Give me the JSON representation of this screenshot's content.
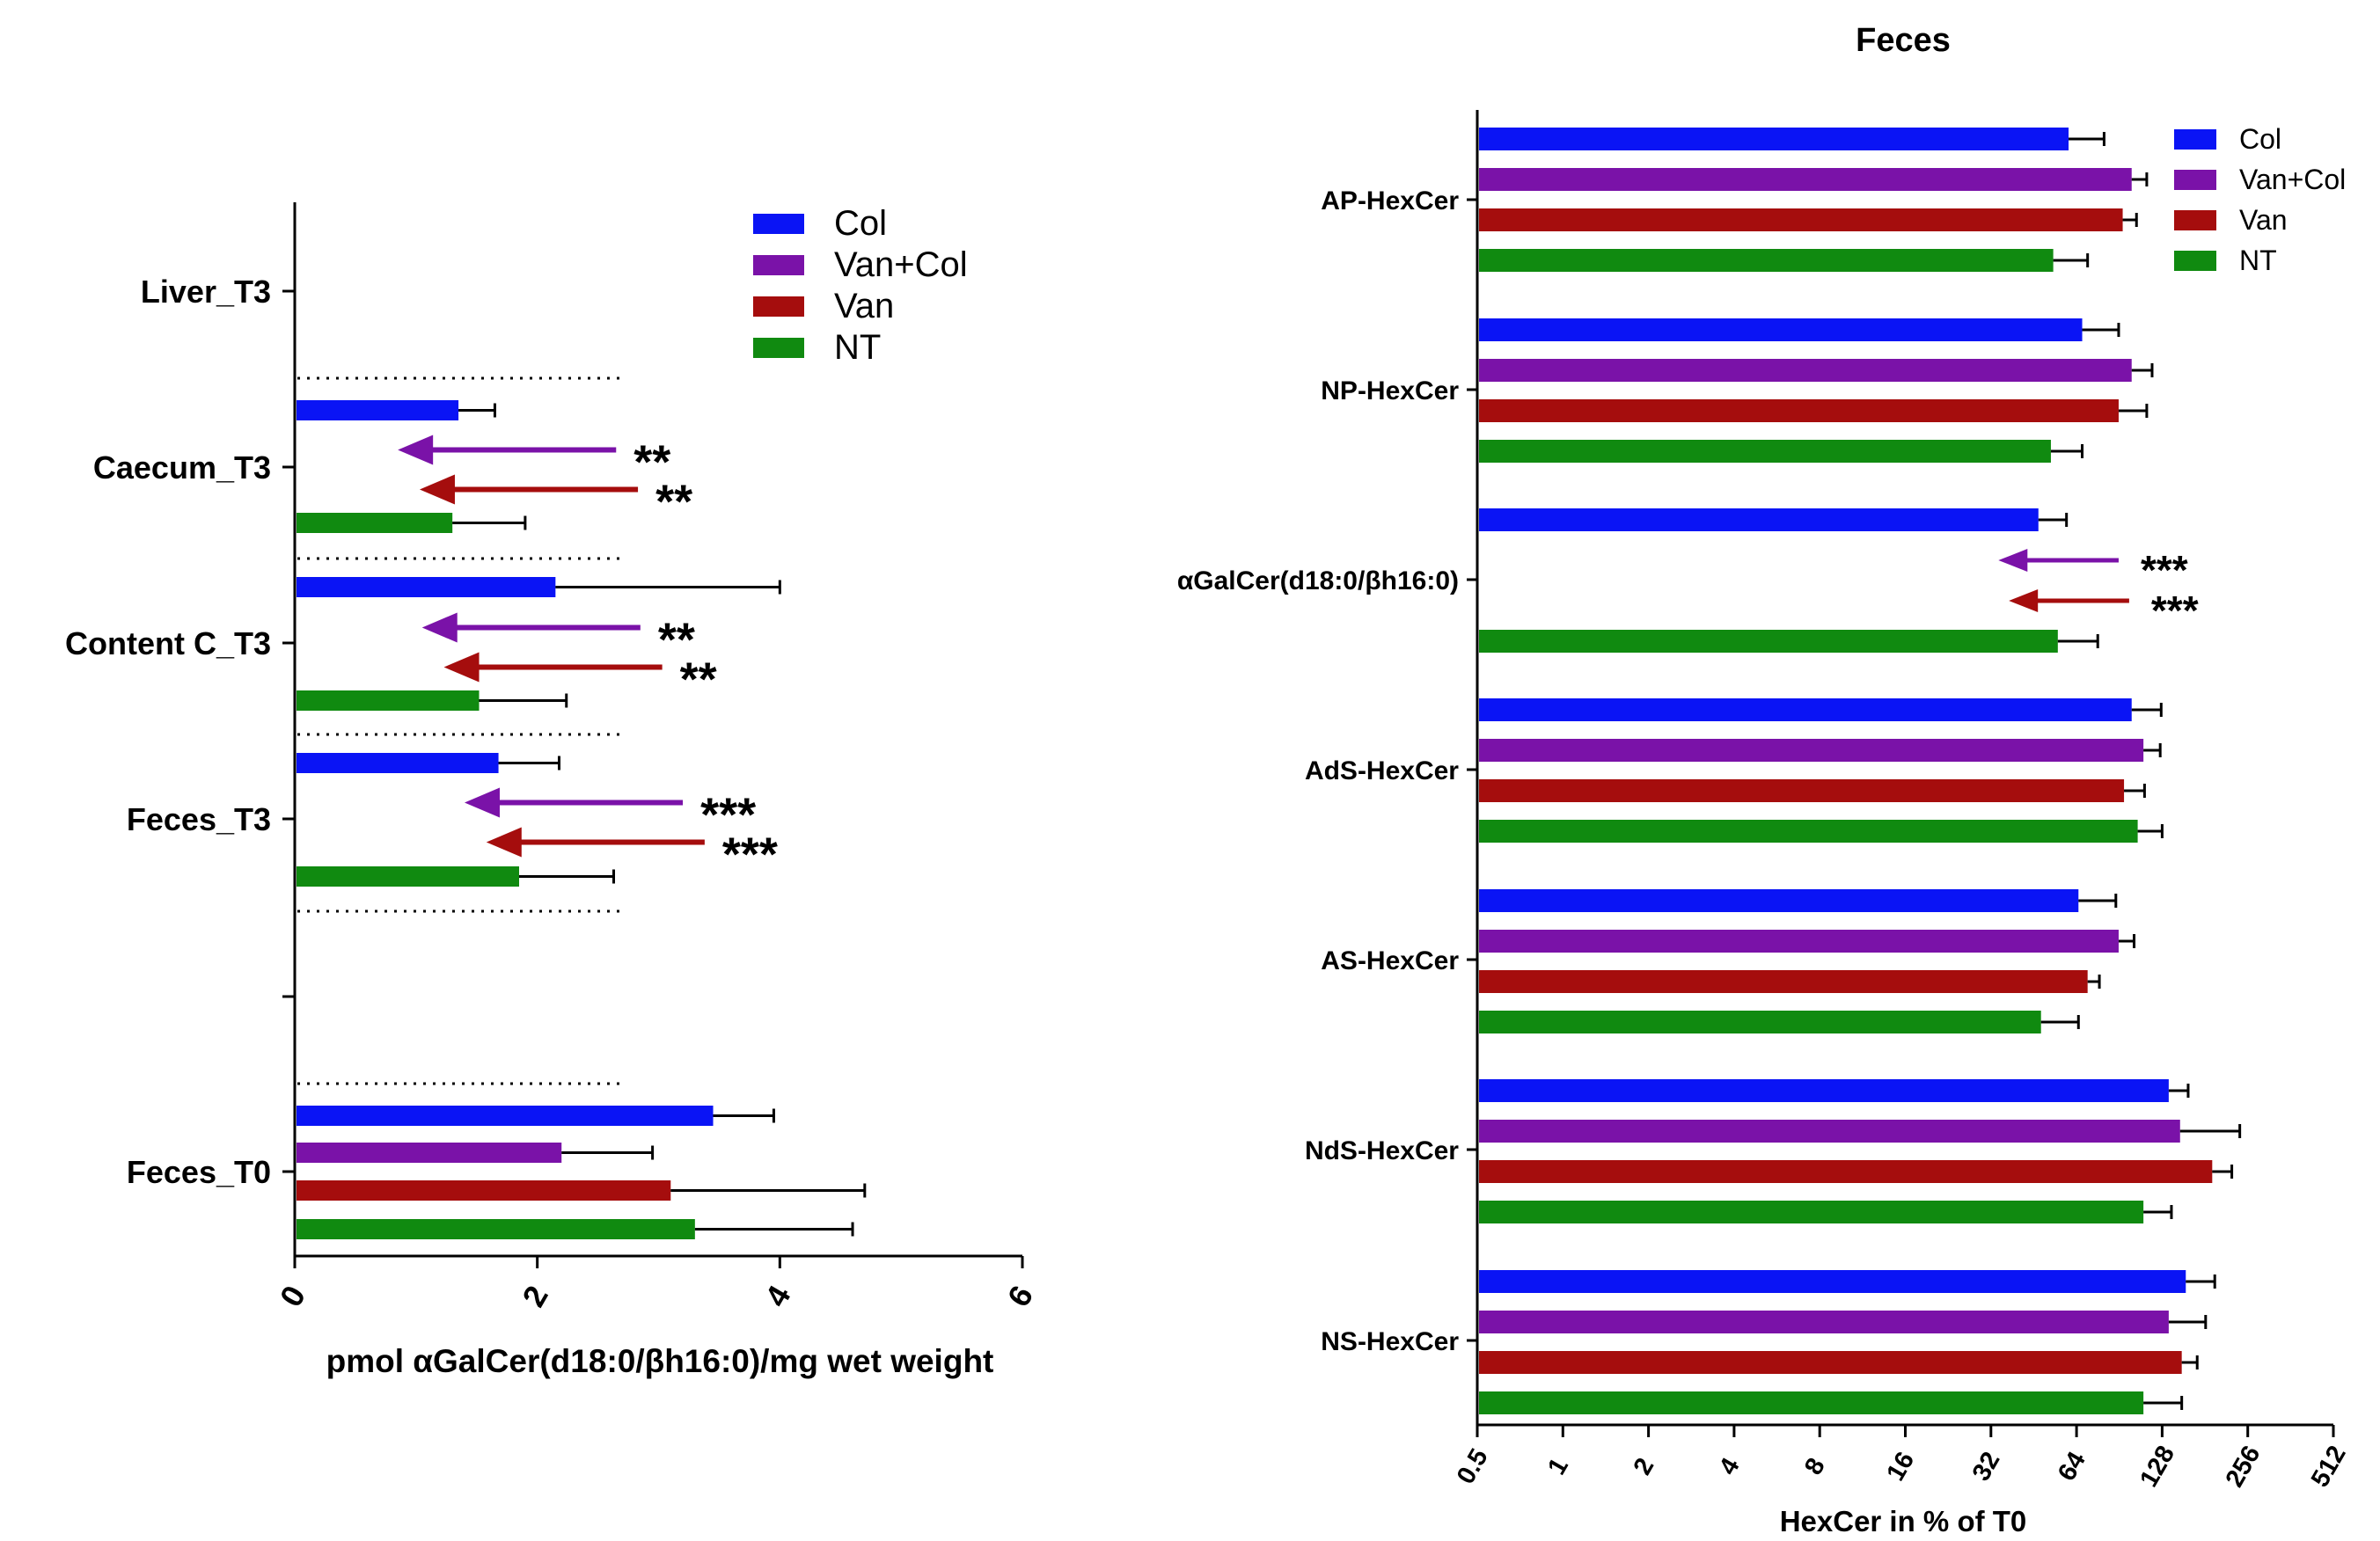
{
  "chart_data": [
    {
      "type": "bar",
      "orientation": "horizontal",
      "title": "",
      "xlabel": "pmol αGalCer(d18:0/βh16:0)/mg wet weight",
      "ylabel": "",
      "xlim": [
        0,
        6
      ],
      "xticks": [
        "0",
        "2",
        "4",
        "6"
      ],
      "legend": {
        "position": "top-right",
        "entries": [
          "Col",
          "Van+Col",
          "Van",
          "NT"
        ]
      },
      "colors": {
        "Col": "#0a14f5",
        "Van+Col": "#7a12a8",
        "Van": "#a50d0d",
        "NT": "#108a10"
      },
      "categories": [
        "Liver_T3",
        "Caecum_T3",
        "Content C_T3",
        "Feces_T3",
        "Feces_T0"
      ],
      "series": [
        {
          "name": "Col",
          "values": [
            null,
            1.35,
            2.15,
            1.68,
            3.45
          ],
          "errors": [
            null,
            0.3,
            1.85,
            0.5,
            0.5
          ]
        },
        {
          "name": "Van+Col",
          "values": [
            null,
            null,
            null,
            null,
            2.2
          ],
          "errors": [
            null,
            null,
            null,
            null,
            0.75
          ]
        },
        {
          "name": "Van",
          "values": [
            null,
            null,
            null,
            null,
            3.1
          ],
          "errors": [
            null,
            null,
            null,
            null,
            1.6
          ]
        },
        {
          "name": "NT",
          "values": [
            null,
            1.3,
            1.52,
            1.85,
            3.3
          ],
          "errors": [
            null,
            0.6,
            0.72,
            0.78,
            1.3
          ]
        }
      ],
      "annotations": [
        {
          "category": "Caecum_T3",
          "series": "Van+Col",
          "arrow_from": 2.65,
          "arrow_to": 0.85,
          "label": "**"
        },
        {
          "category": "Caecum_T3",
          "series": "Van",
          "arrow_from": 2.83,
          "arrow_to": 1.03,
          "label": "**"
        },
        {
          "category": "Content C_T3",
          "series": "Van+Col",
          "arrow_from": 2.85,
          "arrow_to": 1.05,
          "label": "**"
        },
        {
          "category": "Content C_T3",
          "series": "Van",
          "arrow_from": 3.03,
          "arrow_to": 1.23,
          "label": "**"
        },
        {
          "category": "Feces_T3",
          "series": "Van+Col",
          "arrow_from": 3.2,
          "arrow_to": 1.4,
          "label": "***"
        },
        {
          "category": "Feces_T3",
          "series": "Van",
          "arrow_from": 3.38,
          "arrow_to": 1.58,
          "label": "***"
        }
      ]
    },
    {
      "type": "bar",
      "orientation": "horizontal",
      "scale": "log2",
      "title": "Feces",
      "xlabel": "HexCer in % of T0",
      "ylabel": "",
      "xlim": [
        0.5,
        512
      ],
      "xticks": [
        "0.5",
        "1",
        "2",
        "4",
        "8",
        "16",
        "32",
        "64",
        "128",
        "256",
        "512"
      ],
      "legend": {
        "position": "top-right",
        "entries": [
          "Col",
          "Van+Col",
          "Van",
          "NT"
        ]
      },
      "colors": {
        "Col": "#0a14f5",
        "Van+Col": "#7a12a8",
        "Van": "#a50d0d",
        "NT": "#108a10"
      },
      "categories": [
        "AP-HexCer",
        "NP-HexCer",
        "αGalCer(d18:0/βh16:0)",
        "AdS-HexCer",
        "AS-HexCer",
        "NdS-HexCer",
        "NS-HexCer"
      ],
      "series": [
        {
          "name": "Col",
          "values": [
            60,
            67,
            47,
            100,
            65,
            135,
            155
          ],
          "error_high": [
            80,
            90,
            59,
            127,
            88,
            158,
            196
          ]
        },
        {
          "name": "Van+Col",
          "values": [
            100,
            100,
            null,
            110,
            90,
            148,
            135
          ],
          "error_high": [
            113,
            118,
            null,
            126,
            102,
            240,
            182
          ]
        },
        {
          "name": "Van",
          "values": [
            93,
            90,
            null,
            94,
            70,
            192,
            150
          ],
          "error_high": [
            104,
            113,
            null,
            111,
            77,
            225,
            170
          ]
        },
        {
          "name": "NT",
          "values": [
            53,
            52,
            55,
            105,
            48,
            110,
            110
          ],
          "error_high": [
            70,
            67,
            76,
            128,
            65,
            138,
            150
          ]
        }
      ],
      "annotations": [
        {
          "category": "αGalCer(d18:0/βh16:0)",
          "series": "Van+Col",
          "arrow_from": 90,
          "arrow_to": 34,
          "label": "***"
        },
        {
          "category": "αGalCer(d18:0/βh16:0)",
          "series": "Van",
          "arrow_from": 98,
          "arrow_to": 37,
          "label": "***"
        }
      ]
    }
  ]
}
